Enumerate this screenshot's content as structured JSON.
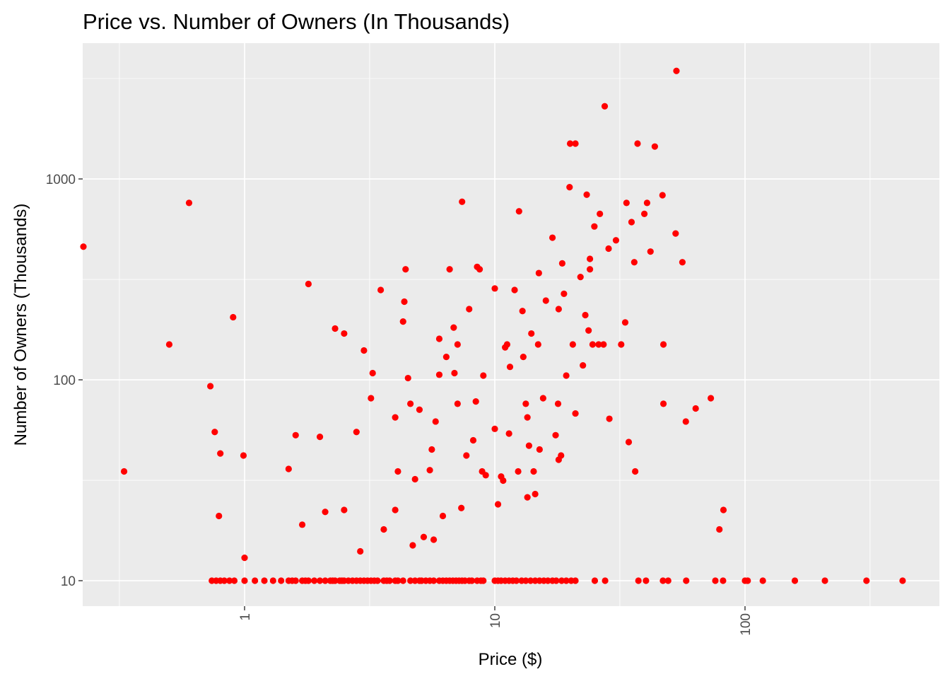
{
  "chart_data": {
    "type": "scatter",
    "title": "Price vs. Number of Owners (In Thousands)",
    "xlabel": "Price ($)",
    "ylabel": "Number of Owners (Thousands)",
    "x_scale": "log10",
    "y_scale": "log10",
    "xlim": [
      0.2,
      500
    ],
    "ylim": [
      7,
      4700
    ],
    "x_ticks": [
      1,
      10,
      100
    ],
    "x_tick_labels": [
      "1",
      "10",
      "100"
    ],
    "x_minor_ticks": [
      0.316,
      3.16,
      31.6,
      316
    ],
    "y_ticks": [
      10,
      100,
      1000
    ],
    "y_tick_labels": [
      "10",
      "100",
      "1000"
    ],
    "y_minor_ticks": [
      31.6,
      316,
      3162
    ],
    "grid": true,
    "point_color": "#ff0000",
    "panel_color": "#ebebeb",
    "points": [
      [
        0.2,
        460
      ],
      [
        0.33,
        35
      ],
      [
        0.5,
        150
      ],
      [
        0.6,
        760
      ],
      [
        0.73,
        93
      ],
      [
        0.76,
        55
      ],
      [
        0.8,
        43
      ],
      [
        0.79,
        21
      ],
      [
        0.9,
        205
      ],
      [
        0.99,
        42
      ],
      [
        1.0,
        13
      ],
      [
        1.5,
        36
      ],
      [
        1.6,
        53
      ],
      [
        1.7,
        19
      ],
      [
        1.8,
        300
      ],
      [
        2.0,
        52
      ],
      [
        2.1,
        22
      ],
      [
        2.3,
        180
      ],
      [
        2.5,
        170
      ],
      [
        2.5,
        22.5
      ],
      [
        2.8,
        55
      ],
      [
        2.9,
        14
      ],
      [
        3.0,
        140
      ],
      [
        3.2,
        81
      ],
      [
        3.25,
        108
      ],
      [
        3.5,
        280
      ],
      [
        3.6,
        18
      ],
      [
        4.0,
        65
      ],
      [
        4.0,
        22.5
      ],
      [
        4.1,
        35
      ],
      [
        4.3,
        195
      ],
      [
        4.35,
        245
      ],
      [
        4.4,
        355
      ],
      [
        4.5,
        102
      ],
      [
        4.6,
        76
      ],
      [
        4.7,
        15
      ],
      [
        4.8,
        32
      ],
      [
        5.0,
        71
      ],
      [
        5.2,
        16.5
      ],
      [
        5.5,
        35.5
      ],
      [
        5.6,
        45
      ],
      [
        5.7,
        16
      ],
      [
        5.8,
        62
      ],
      [
        6.0,
        160
      ],
      [
        6.0,
        106
      ],
      [
        6.2,
        21
      ],
      [
        6.4,
        130
      ],
      [
        6.6,
        355
      ],
      [
        6.85,
        182
      ],
      [
        6.9,
        108
      ],
      [
        7.1,
        150
      ],
      [
        7.1,
        76
      ],
      [
        7.35,
        23
      ],
      [
        7.4,
        770
      ],
      [
        7.7,
        42
      ],
      [
        7.9,
        225
      ],
      [
        8.2,
        50
      ],
      [
        8.4,
        78
      ],
      [
        8.5,
        365
      ],
      [
        8.7,
        355
      ],
      [
        8.9,
        35
      ],
      [
        9.0,
        105
      ],
      [
        9.2,
        33.5
      ],
      [
        10.0,
        285
      ],
      [
        10.0,
        57
      ],
      [
        10.3,
        24
      ],
      [
        10.6,
        33
      ],
      [
        10.8,
        31.5
      ],
      [
        11.0,
        145
      ],
      [
        11.2,
        150
      ],
      [
        11.4,
        54
      ],
      [
        11.5,
        116
      ],
      [
        12.0,
        280
      ],
      [
        12.4,
        35
      ],
      [
        12.5,
        690
      ],
      [
        12.9,
        220
      ],
      [
        13.0,
        130
      ],
      [
        13.3,
        76
      ],
      [
        13.5,
        65
      ],
      [
        13.5,
        26
      ],
      [
        13.7,
        47
      ],
      [
        14.0,
        170
      ],
      [
        14.3,
        35
      ],
      [
        14.5,
        27
      ],
      [
        14.9,
        150
      ],
      [
        15.0,
        340
      ],
      [
        15.1,
        45
      ],
      [
        15.6,
        81
      ],
      [
        16.0,
        248
      ],
      [
        17.0,
        510
      ],
      [
        17.5,
        53
      ],
      [
        17.9,
        76
      ],
      [
        18.0,
        40
      ],
      [
        18.0,
        225
      ],
      [
        18.4,
        42
      ],
      [
        18.6,
        380
      ],
      [
        18.9,
        268
      ],
      [
        19.3,
        105
      ],
      [
        19.9,
        910
      ],
      [
        20.0,
        1500
      ],
      [
        20.5,
        150
      ],
      [
        21.0,
        1500
      ],
      [
        21.0,
        68
      ],
      [
        22.0,
        325
      ],
      [
        22.5,
        118
      ],
      [
        23.0,
        210
      ],
      [
        23.3,
        835
      ],
      [
        23.7,
        176
      ],
      [
        24.0,
        355
      ],
      [
        24.0,
        400
      ],
      [
        24.6,
        150
      ],
      [
        25.0,
        580
      ],
      [
        26.0,
        150
      ],
      [
        26.3,
        670
      ],
      [
        27.2,
        150
      ],
      [
        27.5,
        2300
      ],
      [
        28.5,
        450
      ],
      [
        28.7,
        64
      ],
      [
        30.5,
        495
      ],
      [
        32.0,
        150
      ],
      [
        33.2,
        193
      ],
      [
        33.6,
        760
      ],
      [
        34.3,
        49
      ],
      [
        35.2,
        610
      ],
      [
        36.1,
        385
      ],
      [
        36.4,
        35
      ],
      [
        37.2,
        1500
      ],
      [
        39.6,
        670
      ],
      [
        40.6,
        760
      ],
      [
        41.9,
        435
      ],
      [
        43.6,
        1450
      ],
      [
        46.8,
        830
      ],
      [
        47.2,
        150
      ],
      [
        47.2,
        76
      ],
      [
        52.8,
        535
      ],
      [
        53.2,
        3450
      ],
      [
        56.2,
        385
      ],
      [
        58.0,
        62
      ],
      [
        63.5,
        72
      ],
      [
        73.0,
        81
      ],
      [
        79.0,
        18
      ],
      [
        82.0,
        22.5
      ]
    ],
    "points_at_10": [
      0.74,
      0.77,
      0.8,
      0.83,
      0.87,
      0.91,
      1.0,
      1.1,
      1.2,
      1.3,
      1.4,
      1.5,
      1.55,
      1.6,
      1.7,
      1.75,
      1.8,
      1.9,
      2.0,
      2.1,
      2.2,
      2.25,
      2.3,
      2.4,
      2.45,
      2.5,
      2.6,
      2.7,
      2.8,
      2.9,
      3.0,
      3.1,
      3.2,
      3.3,
      3.4,
      3.6,
      3.7,
      3.8,
      4.0,
      4.1,
      4.3,
      4.6,
      4.8,
      5.0,
      5.1,
      5.3,
      5.5,
      5.7,
      6.0,
      6.2,
      6.4,
      6.6,
      6.8,
      7.0,
      7.2,
      7.4,
      7.6,
      7.9,
      8.1,
      8.5,
      8.8,
      9.0,
      10.0,
      10.3,
      10.6,
      11.0,
      11.4,
      11.8,
      12.2,
      12.8,
      13.3,
      13.9,
      14.5,
      15.1,
      15.7,
      16.3,
      17.0,
      17.6,
      18.5,
      19.3,
      20.2,
      21.0,
      25.1,
      27.6,
      37.5,
      40.2,
      47.0,
      49.3,
      58.2,
      76.1,
      81.7,
      100.0,
      102.5,
      117.8,
      158.2,
      208.6,
      305.8,
      426.4
    ]
  }
}
